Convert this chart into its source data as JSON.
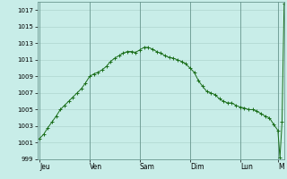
{
  "background_color": "#c8ede8",
  "grid_color": "#a8cfc8",
  "line_color": "#1a6e1a",
  "marker_color": "#1a6e1a",
  "ylim": [
    999,
    1018
  ],
  "yticks": [
    999,
    1001,
    1003,
    1005,
    1007,
    1009,
    1011,
    1013,
    1015,
    1017
  ],
  "day_labels": [
    "Jeu",
    "Ven",
    "Sam",
    "Dim",
    "Lun",
    "M"
  ],
  "day_x_positions": [
    0,
    24,
    48,
    72,
    96,
    114
  ],
  "xlim": [
    -1,
    117
  ],
  "x_values": [
    0,
    2,
    4,
    6,
    8,
    10,
    12,
    14,
    16,
    18,
    20,
    22,
    24,
    26,
    28,
    30,
    32,
    34,
    36,
    38,
    40,
    42,
    44,
    46,
    48,
    50,
    52,
    54,
    56,
    58,
    60,
    62,
    64,
    66,
    68,
    70,
    72,
    74,
    76,
    78,
    80,
    82,
    84,
    86,
    88,
    90,
    92,
    94,
    96,
    98,
    100,
    102,
    104,
    106,
    108,
    110,
    112,
    114,
    115,
    116,
    117
  ],
  "y_values": [
    1001.5,
    1002.0,
    1002.8,
    1003.5,
    1004.2,
    1005.0,
    1005.5,
    1006.0,
    1006.5,
    1007.0,
    1007.5,
    1008.2,
    1009.0,
    1009.3,
    1009.5,
    1009.8,
    1010.2,
    1010.8,
    1011.2,
    1011.5,
    1011.8,
    1012.0,
    1012.0,
    1011.9,
    1012.2,
    1012.5,
    1012.5,
    1012.3,
    1012.0,
    1011.8,
    1011.5,
    1011.3,
    1011.2,
    1011.0,
    1010.8,
    1010.5,
    1010.0,
    1009.5,
    1008.5,
    1007.8,
    1007.2,
    1007.0,
    1006.8,
    1006.3,
    1006.0,
    1005.8,
    1005.8,
    1005.5,
    1005.3,
    1005.2,
    1005.0,
    1005.0,
    1004.8,
    1004.5,
    1004.2,
    1004.0,
    1003.2,
    1002.5,
    999.2,
    1003.5,
    1017.8
  ]
}
